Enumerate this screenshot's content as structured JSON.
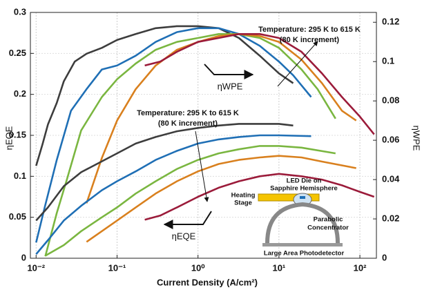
{
  "chart_data": {
    "type": "line",
    "xscale": "log",
    "grid": true,
    "x_label": "Current Density (A/cm²)",
    "y_label": "ηEQE",
    "y2_label": "ηWPE",
    "xlim": [
      0.0085,
      160
    ],
    "ylim": [
      0,
      0.3
    ],
    "y2lim": [
      0,
      0.125
    ],
    "xticks": [
      {
        "value": 0.01,
        "label": "10⁻²"
      },
      {
        "value": 0.1,
        "label": "10⁻¹"
      },
      {
        "value": 1,
        "label": "10⁰"
      },
      {
        "value": 10,
        "label": "10¹"
      },
      {
        "value": 100,
        "label": "10²"
      }
    ],
    "yticks": [
      0,
      0.05,
      0.1,
      0.15,
      0.2,
      0.25,
      0.3
    ],
    "y2ticks": [
      0,
      0.02,
      0.04,
      0.06,
      0.08,
      0.1,
      0.12
    ],
    "series": [
      {
        "color": "#3d3d3d",
        "axis": "y2",
        "x": [
          0.01,
          0.012,
          0.014,
          0.018,
          0.022,
          0.03,
          0.042,
          0.065,
          0.1,
          0.17,
          0.3,
          0.55,
          1,
          1.8,
          3.2,
          5.8,
          10,
          15
        ],
        "values": [
          0.047,
          0.058,
          0.068,
          0.079,
          0.09,
          0.1,
          0.104,
          0.107,
          0.111,
          0.114,
          0.117,
          0.118,
          0.118,
          0.117,
          0.112,
          0.103,
          0.094,
          0.089
        ]
      },
      {
        "color": "#1f6fb5",
        "axis": "y2",
        "x": [
          0.01,
          0.0128,
          0.018,
          0.027,
          0.042,
          0.065,
          0.1,
          0.17,
          0.3,
          0.55,
          1,
          1.8,
          3.2,
          5.8,
          10,
          15,
          25
        ],
        "values": [
          0.008,
          0.026,
          0.05,
          0.075,
          0.086,
          0.096,
          0.098,
          0.103,
          0.11,
          0.115,
          0.117,
          0.117,
          0.114,
          0.108,
          0.1,
          0.093,
          0.082
        ]
      },
      {
        "color": "#7ab640",
        "axis": "y2",
        "x": [
          0.013,
          0.018,
          0.024,
          0.036,
          0.065,
          0.1,
          0.17,
          0.3,
          0.55,
          1,
          1.8,
          3.2,
          5.8,
          10,
          19,
          30,
          50
        ],
        "values": [
          0.001,
          0.023,
          0.04,
          0.065,
          0.082,
          0.091,
          0.099,
          0.106,
          0.11,
          0.112,
          0.114,
          0.114,
          0.112,
          0.107,
          0.096,
          0.086,
          0.071
        ]
      },
      {
        "color": "#d9801e",
        "axis": "y2",
        "x": [
          0.042,
          0.065,
          0.1,
          0.17,
          0.3,
          0.55,
          1,
          1.8,
          3.2,
          5.8,
          10,
          19,
          34,
          60,
          90
        ],
        "values": [
          0.028,
          0.051,
          0.07,
          0.086,
          0.098,
          0.106,
          0.11,
          0.113,
          0.114,
          0.113,
          0.11,
          0.101,
          0.089,
          0.075,
          0.07
        ]
      },
      {
        "color": "#9b1b3a",
        "axis": "y2",
        "x": [
          0.22,
          0.34,
          0.55,
          1,
          1.8,
          3.2,
          5.8,
          10,
          19,
          34,
          60,
          100,
          150
        ],
        "values": [
          0.098,
          0.1,
          0.105,
          0.11,
          0.112,
          0.114,
          0.114,
          0.112,
          0.105,
          0.094,
          0.082,
          0.072,
          0.063
        ]
      },
      {
        "color": "#3d3d3d",
        "x": [
          0.01,
          0.014,
          0.022,
          0.036,
          0.1,
          0.17,
          0.3,
          0.55,
          1,
          1.8,
          3.2,
          5.8,
          10,
          15
        ],
        "values": [
          0.046,
          0.062,
          0.088,
          0.105,
          0.128,
          0.14,
          0.148,
          0.155,
          0.159,
          0.162,
          0.164,
          0.164,
          0.164,
          0.162
        ]
      },
      {
        "color": "#1f6fb5",
        "x": [
          0.01,
          0.014,
          0.022,
          0.036,
          0.065,
          0.1,
          0.17,
          0.3,
          0.55,
          1,
          1.8,
          3.2,
          5.8,
          10,
          25
        ],
        "values": [
          0.005,
          0.022,
          0.046,
          0.064,
          0.083,
          0.094,
          0.106,
          0.12,
          0.131,
          0.14,
          0.145,
          0.148,
          0.15,
          0.15,
          0.149
        ]
      },
      {
        "color": "#7ab640",
        "x": [
          0.013,
          0.022,
          0.036,
          0.065,
          0.1,
          0.17,
          0.3,
          0.55,
          1,
          1.8,
          3.2,
          5.8,
          10,
          19,
          50
        ],
        "values": [
          0.003,
          0.016,
          0.033,
          0.05,
          0.062,
          0.079,
          0.094,
          0.109,
          0.12,
          0.128,
          0.133,
          0.137,
          0.137,
          0.135,
          0.128
        ]
      },
      {
        "color": "#d9801e",
        "x": [
          0.042,
          0.065,
          0.1,
          0.17,
          0.3,
          0.55,
          1,
          1.8,
          3.2,
          5.8,
          10,
          19,
          34,
          90
        ],
        "values": [
          0.02,
          0.033,
          0.046,
          0.062,
          0.079,
          0.094,
          0.106,
          0.115,
          0.12,
          0.123,
          0.125,
          0.123,
          0.118,
          0.11
        ]
      },
      {
        "color": "#9b1b3a",
        "x": [
          0.22,
          0.34,
          0.55,
          1,
          1.8,
          3.2,
          5.8,
          10,
          19,
          34,
          60,
          100,
          150
        ],
        "values": [
          0.047,
          0.052,
          0.062,
          0.075,
          0.086,
          0.094,
          0.1,
          0.103,
          0.1,
          0.096,
          0.089,
          0.081,
          0.075
        ]
      }
    ],
    "annotations": [
      "Temperature: 295 K to 615 K",
      "(80 K increment)",
      "Temperature: 295 K to 615 K",
      "(80 K increment)",
      "ηWPE",
      "ηEQE"
    ],
    "inset": {
      "die": [
        "LED Die on",
        "Sapphire Hemisphere"
      ],
      "stage": [
        "Heating",
        "Stage"
      ],
      "concentrator": [
        "Parabolic",
        "Concentrator"
      ],
      "detector": "Large Area Photodetector"
    }
  }
}
